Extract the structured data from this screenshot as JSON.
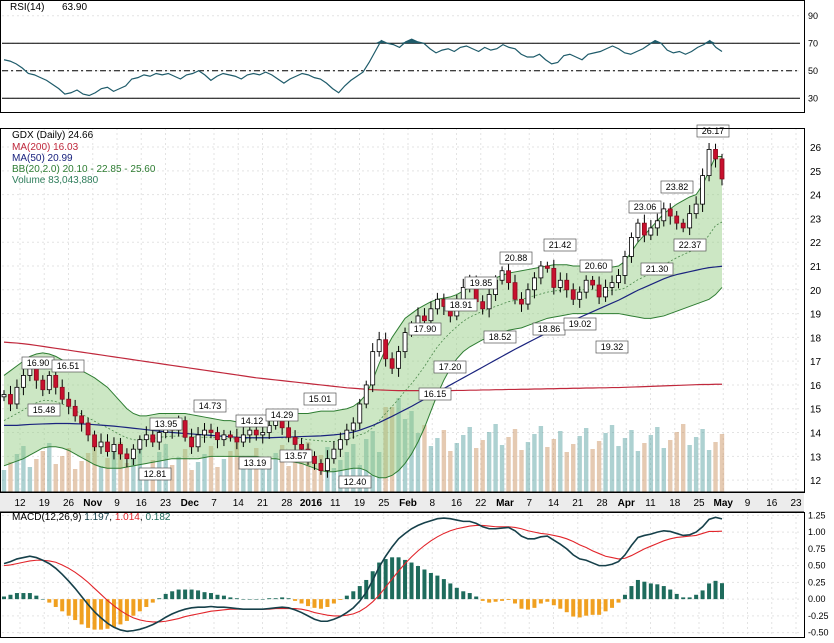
{
  "chart_data": [
    {
      "panel": "rsi",
      "type": "line",
      "label": "RSI(14)",
      "last_value": "63.90",
      "y_ticks": [
        "90",
        "70",
        "50",
        "30"
      ],
      "ylim": [
        20,
        100
      ],
      "reference_lines": [
        70,
        50,
        30
      ],
      "values": [
        58,
        57,
        55,
        52,
        48,
        47,
        45,
        43,
        40,
        37,
        33,
        34,
        36,
        33,
        32,
        34,
        37,
        38,
        35,
        37,
        39,
        44,
        45,
        47,
        46,
        48,
        47,
        48,
        46,
        44,
        47,
        48,
        50,
        47,
        43,
        46,
        48,
        47,
        46,
        44,
        47,
        48,
        47,
        49,
        47,
        44,
        41,
        44,
        46,
        48,
        47,
        45,
        44,
        41,
        37,
        34,
        39,
        43,
        46,
        49,
        56,
        64,
        72,
        70,
        69,
        67,
        71,
        73,
        71,
        70,
        66,
        63,
        65,
        66,
        64,
        67,
        68,
        66,
        64,
        67,
        65,
        66,
        69,
        67,
        66,
        62,
        60,
        60,
        62,
        58,
        55,
        56,
        61,
        62,
        60,
        58,
        62,
        63,
        64,
        66,
        68,
        66,
        63,
        62,
        64,
        66,
        69,
        72,
        70,
        65,
        63,
        64,
        62,
        64,
        67,
        69,
        72,
        67,
        64
      ]
    },
    {
      "panel": "price",
      "type": "candlestick",
      "ticker_label": "GDX (Daily) 24.66",
      "legend": [
        {
          "text": "MA(200) 16.03",
          "color": "#c0283c"
        },
        {
          "text": "MA(50) 20.99",
          "color": "#1a237e"
        },
        {
          "text": "BB(20,2.0) 20.10 - 22.85 - 25.60",
          "color": "#2e7d32"
        },
        {
          "text": "Volume 83,043,880",
          "color": "#2e7d5b"
        }
      ],
      "y_ticks": [
        "26",
        "25",
        "24",
        "23",
        "22",
        "21",
        "20",
        "19",
        "18",
        "17",
        "16",
        "15",
        "14",
        "13",
        "12"
      ],
      "ylim": [
        11.5,
        26.8
      ],
      "annotations": [
        "16.90",
        "16.51",
        "15.48",
        "12.81",
        "13.95",
        "14.73",
        "14.12",
        "13.19",
        "14.29",
        "13.57",
        "15.01",
        "12.40",
        "17.90",
        "16.15",
        "17.20",
        "18.91",
        "19.85",
        "18.52",
        "20.88",
        "18.86",
        "21.42",
        "19.02",
        "20.60",
        "19.32",
        "21.30",
        "23.06",
        "22.37",
        "23.82",
        "26.17"
      ],
      "closes": [
        15.6,
        15.2,
        15.9,
        16.4,
        16.7,
        16.2,
        15.8,
        16.4,
        15.9,
        15.4,
        15.1,
        14.7,
        14.4,
        13.9,
        13.4,
        13.6,
        13.2,
        13.5,
        13.1,
        12.9,
        13.3,
        13.7,
        13.9,
        13.6,
        14.0,
        14.3,
        14.1,
        14.5,
        13.8,
        13.4,
        13.9,
        14.1,
        14.0,
        13.7,
        13.9,
        13.8,
        13.6,
        13.9,
        14.1,
        13.9,
        14.0,
        14.3,
        14.6,
        14.2,
        13.8,
        13.5,
        13.3,
        13.0,
        12.7,
        12.4,
        12.9,
        13.3,
        13.7,
        14.1,
        14.4,
        15.2,
        16.0,
        17.4,
        17.9,
        17.1,
        16.7,
        17.4,
        18.2,
        18.5,
        18.9,
        18.7,
        19.2,
        19.6,
        19.3,
        18.9,
        19.6,
        20.1,
        20.3,
        19.5,
        19.2,
        19.8,
        20.4,
        20.8,
        20.3,
        19.6,
        19.4,
        20.0,
        20.5,
        21.0,
        20.9,
        20.1,
        20.4,
        20.0,
        19.6,
        19.9,
        20.4,
        20.2,
        19.7,
        20.1,
        20.3,
        20.6,
        21.4,
        22.2,
        22.8,
        22.3,
        22.6,
        22.9,
        23.4,
        23.1,
        22.8,
        22.6,
        23.2,
        23.6,
        24.8,
        25.9,
        25.5,
        24.66
      ],
      "ma200": [
        17.8,
        17.78,
        17.76,
        17.73,
        17.7,
        17.66,
        17.62,
        17.58,
        17.54,
        17.5,
        17.46,
        17.42,
        17.38,
        17.34,
        17.3,
        17.26,
        17.22,
        17.18,
        17.14,
        17.1,
        17.06,
        17.02,
        16.98,
        16.94,
        16.9,
        16.86,
        16.82,
        16.78,
        16.74,
        16.7,
        16.66,
        16.62,
        16.58,
        16.54,
        16.5,
        16.46,
        16.42,
        16.38,
        16.34,
        16.3,
        16.27,
        16.24,
        16.21,
        16.18,
        16.15,
        16.12,
        16.09,
        16.06,
        16.03,
        16.0,
        15.97,
        15.94,
        15.91,
        15.88,
        15.86,
        15.84,
        15.82,
        15.8,
        15.79,
        15.78,
        15.77,
        15.76,
        15.76,
        15.76,
        15.76,
        15.76,
        15.76,
        15.76,
        15.76,
        15.76,
        15.77,
        15.77,
        15.78,
        15.78,
        15.79,
        15.79,
        15.8,
        15.8,
        15.81,
        15.81,
        15.82,
        15.82,
        15.83,
        15.83,
        15.84,
        15.84,
        15.85,
        15.85,
        15.86,
        15.86,
        15.87,
        15.87,
        15.88,
        15.88,
        15.89,
        15.89,
        15.9,
        15.91,
        15.92,
        15.93,
        15.94,
        15.95,
        15.96,
        15.97,
        15.98,
        15.99,
        16.0,
        16.01,
        16.02,
        16.02,
        16.03,
        16.03
      ],
      "ma50": [
        14.3,
        14.3,
        14.3,
        14.32,
        14.34,
        14.35,
        14.36,
        14.37,
        14.38,
        14.38,
        14.38,
        14.37,
        14.36,
        14.35,
        14.33,
        14.31,
        14.29,
        14.27,
        14.24,
        14.21,
        14.18,
        14.15,
        14.12,
        14.09,
        14.06,
        14.03,
        14.0,
        13.98,
        13.96,
        13.94,
        13.92,
        13.9,
        13.88,
        13.86,
        13.84,
        13.82,
        13.8,
        13.79,
        13.78,
        13.78,
        13.78,
        13.78,
        13.79,
        13.8,
        13.81,
        13.82,
        13.83,
        13.84,
        13.85,
        13.86,
        13.88,
        13.9,
        13.93,
        13.97,
        14.02,
        14.1,
        14.2,
        14.3,
        14.42,
        14.55,
        14.68,
        14.82,
        14.96,
        15.1,
        15.25,
        15.4,
        15.55,
        15.7,
        15.85,
        16.0,
        16.15,
        16.3,
        16.45,
        16.6,
        16.75,
        16.9,
        17.05,
        17.2,
        17.35,
        17.5,
        17.64,
        17.78,
        17.92,
        18.06,
        18.2,
        18.34,
        18.48,
        18.6,
        18.72,
        18.84,
        18.96,
        19.08,
        19.2,
        19.32,
        19.44,
        19.56,
        19.7,
        19.84,
        19.98,
        20.1,
        20.22,
        20.34,
        20.46,
        20.56,
        20.64,
        20.7,
        20.76,
        20.82,
        20.88,
        20.93,
        20.96,
        20.99
      ],
      "bb_upper": [
        16.4,
        16.6,
        16.8,
        17.0,
        17.2,
        17.3,
        17.35,
        17.3,
        17.2,
        17.05,
        16.9,
        16.75,
        16.6,
        16.45,
        16.3,
        16.1,
        15.9,
        15.6,
        15.3,
        15.0,
        14.8,
        14.7,
        14.7,
        14.75,
        14.8,
        14.8,
        14.8,
        14.8,
        14.8,
        14.75,
        14.7,
        14.65,
        14.6,
        14.55,
        14.5,
        14.5,
        14.45,
        14.45,
        14.5,
        14.55,
        14.6,
        14.65,
        14.7,
        14.7,
        14.75,
        14.8,
        14.8,
        14.8,
        14.85,
        14.9,
        14.9,
        14.9,
        14.95,
        15.0,
        15.1,
        15.3,
        15.6,
        16.2,
        16.9,
        17.5,
        18.0,
        18.4,
        18.8,
        19.0,
        19.2,
        19.35,
        19.5,
        19.6,
        19.65,
        19.7,
        19.8,
        19.95,
        20.1,
        20.2,
        20.3,
        20.4,
        20.5,
        20.6,
        20.7,
        20.75,
        20.8,
        20.85,
        20.9,
        20.95,
        21.0,
        21.05,
        21.05,
        21.05,
        21.0,
        21.0,
        21.0,
        21.0,
        20.95,
        20.95,
        20.95,
        21.0,
        21.2,
        21.6,
        22.0,
        22.3,
        22.6,
        22.9,
        23.2,
        23.4,
        23.6,
        23.75,
        23.9,
        24.0,
        24.4,
        25.0,
        25.6,
        25.6
      ],
      "bb_lower": [
        12.6,
        12.7,
        12.8,
        12.9,
        13.05,
        13.2,
        13.35,
        13.4,
        13.4,
        13.35,
        13.25,
        13.1,
        12.95,
        12.8,
        12.65,
        12.55,
        12.5,
        12.5,
        12.5,
        12.55,
        12.6,
        12.65,
        12.7,
        12.75,
        12.8,
        12.85,
        12.9,
        12.9,
        12.9,
        12.9,
        12.9,
        12.95,
        13.0,
        13.0,
        13.0,
        13.0,
        13.0,
        13.0,
        13.0,
        13.0,
        12.95,
        12.9,
        12.9,
        12.85,
        12.8,
        12.75,
        12.7,
        12.6,
        12.5,
        12.4,
        12.35,
        12.35,
        12.4,
        12.45,
        12.5,
        12.5,
        12.4,
        12.2,
        12.1,
        12.1,
        12.2,
        12.4,
        12.7,
        13.1,
        13.6,
        14.2,
        14.9,
        15.6,
        16.2,
        16.7,
        17.1,
        17.4,
        17.6,
        17.75,
        17.9,
        18.0,
        18.1,
        18.2,
        18.3,
        18.35,
        18.4,
        18.5,
        18.6,
        18.7,
        18.8,
        18.85,
        18.9,
        18.95,
        19.0,
        19.0,
        19.0,
        19.0,
        19.0,
        19.0,
        19.0,
        19.0,
        18.95,
        18.9,
        18.85,
        18.8,
        18.8,
        18.85,
        18.9,
        19.0,
        19.1,
        19.2,
        19.3,
        19.4,
        19.5,
        19.6,
        19.8,
        20.1
      ],
      "x_labels": [
        "12",
        "19",
        "26",
        "Nov",
        "9",
        "16",
        "23",
        "Dec",
        "7",
        "14",
        "21",
        "28",
        "2016",
        "11",
        "19",
        "25",
        "Feb",
        "8",
        "16",
        "22",
        "Mar",
        "7",
        "14",
        "21",
        "28",
        "Apr",
        "11",
        "18",
        "25",
        "May",
        "9",
        "16",
        "23"
      ]
    },
    {
      "panel": "macd",
      "type": "line+histogram",
      "label_prefix": "MACD(12,26,9)",
      "values_text": [
        "1.197",
        "1.014",
        "0.182"
      ],
      "value_colors": [
        "#16404a",
        "#e2252b",
        "#1e6b5c"
      ],
      "y_ticks": [
        "1.25",
        "1.00",
        "0.75",
        "0.50",
        "0.25",
        "0.00",
        "-0.25",
        "-0.50"
      ],
      "ylim": [
        -0.55,
        1.3
      ],
      "macd": [
        0.53,
        0.56,
        0.6,
        0.62,
        0.64,
        0.62,
        0.58,
        0.53,
        0.46,
        0.37,
        0.27,
        0.16,
        0.04,
        -0.08,
        -0.19,
        -0.28,
        -0.36,
        -0.42,
        -0.46,
        -0.48,
        -0.47,
        -0.45,
        -0.42,
        -0.38,
        -0.33,
        -0.27,
        -0.22,
        -0.18,
        -0.15,
        -0.13,
        -0.12,
        -0.12,
        -0.11,
        -0.12,
        -0.12,
        -0.13,
        -0.14,
        -0.15,
        -0.15,
        -0.15,
        -0.15,
        -0.14,
        -0.13,
        -0.12,
        -0.13,
        -0.16,
        -0.2,
        -0.25,
        -0.3,
        -0.33,
        -0.33,
        -0.3,
        -0.26,
        -0.2,
        -0.13,
        -0.03,
        0.1,
        0.28,
        0.48,
        0.64,
        0.78,
        0.9,
        0.98,
        1.05,
        1.1,
        1.14,
        1.17,
        1.2,
        1.21,
        1.2,
        1.18,
        1.16,
        1.16,
        1.13,
        1.08,
        1.05,
        1.05,
        1.06,
        1.07,
        1.02,
        0.94,
        0.9,
        0.9,
        0.93,
        0.94,
        0.88,
        0.82,
        0.75,
        0.66,
        0.6,
        0.58,
        0.54,
        0.5,
        0.5,
        0.52,
        0.56,
        0.66,
        0.8,
        0.92,
        0.95,
        0.97,
        1.0,
        1.02,
        1.01,
        0.98,
        0.95,
        0.96,
        1.0,
        1.08,
        1.19,
        1.22,
        1.197
      ],
      "signal": [
        0.5,
        0.51,
        0.53,
        0.55,
        0.57,
        0.58,
        0.58,
        0.57,
        0.55,
        0.51,
        0.46,
        0.4,
        0.33,
        0.25,
        0.16,
        0.07,
        -0.02,
        -0.1,
        -0.17,
        -0.23,
        -0.28,
        -0.31,
        -0.33,
        -0.34,
        -0.34,
        -0.33,
        -0.31,
        -0.29,
        -0.26,
        -0.24,
        -0.22,
        -0.2,
        -0.18,
        -0.17,
        -0.16,
        -0.15,
        -0.15,
        -0.15,
        -0.15,
        -0.15,
        -0.15,
        -0.15,
        -0.14,
        -0.14,
        -0.14,
        -0.14,
        -0.15,
        -0.17,
        -0.2,
        -0.22,
        -0.24,
        -0.25,
        -0.25,
        -0.24,
        -0.22,
        -0.18,
        -0.12,
        -0.04,
        0.06,
        0.18,
        0.3,
        0.42,
        0.53,
        0.63,
        0.72,
        0.8,
        0.87,
        0.93,
        0.98,
        1.02,
        1.05,
        1.07,
        1.09,
        1.1,
        1.1,
        1.09,
        1.08,
        1.08,
        1.08,
        1.07,
        1.05,
        1.02,
        1.0,
        0.98,
        0.97,
        0.95,
        0.93,
        0.9,
        0.86,
        0.81,
        0.77,
        0.72,
        0.68,
        0.64,
        0.62,
        0.6,
        0.61,
        0.65,
        0.7,
        0.75,
        0.79,
        0.83,
        0.87,
        0.9,
        0.92,
        0.93,
        0.94,
        0.95,
        0.98,
        1.01,
        1.01,
        1.014
      ]
    }
  ]
}
